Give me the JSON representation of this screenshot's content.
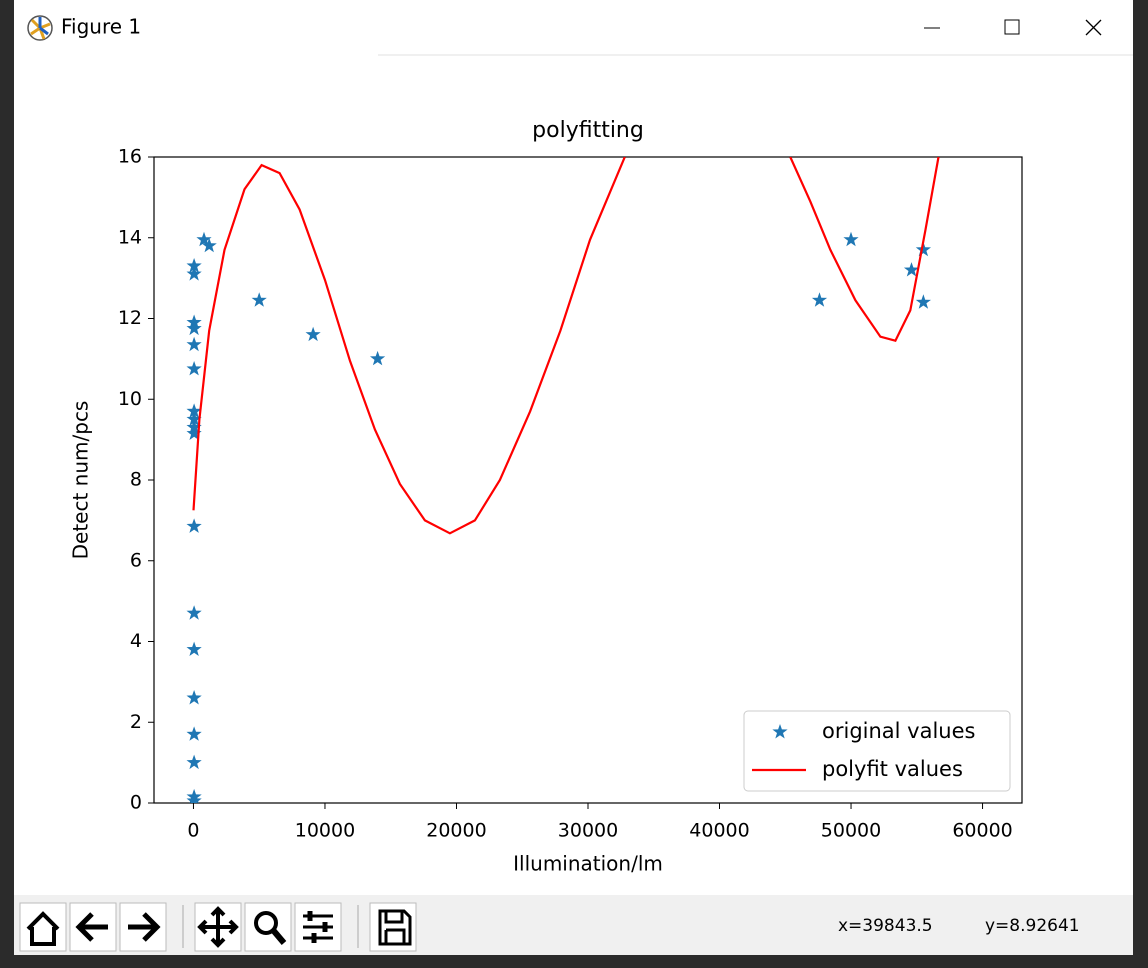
{
  "window": {
    "title": "Figure 1"
  },
  "chart_data": {
    "type": "line",
    "title": "polyfitting",
    "x_label": "Illumination/lm",
    "y_label": "Detect num/pcs",
    "xlim": [
      -3000,
      63000
    ],
    "ylim": [
      0,
      16
    ],
    "xticks": [
      0,
      10000,
      20000,
      30000,
      40000,
      50000,
      60000
    ],
    "yticks": [
      0,
      2,
      4,
      6,
      8,
      10,
      12,
      14,
      16
    ],
    "legend": "lower right",
    "series": [
      {
        "name": "original values",
        "color": "#1f77b4",
        "marker": "star",
        "linestyle": "none",
        "x": [
          50,
          50,
          50,
          50,
          50,
          50,
          50,
          50,
          50,
          50,
          50,
          50,
          50,
          50,
          50,
          50,
          50,
          50,
          800,
          1200,
          5000,
          9100,
          14000,
          47600,
          50000,
          54600,
          55500,
          55500
        ],
        "values": [
          13.3,
          13.1,
          11.9,
          11.75,
          11.35,
          10.75,
          9.7,
          9.5,
          9.3,
          9.15,
          6.85,
          4.7,
          3.8,
          2.6,
          1.7,
          1.0,
          0.15,
          0.05,
          13.95,
          13.8,
          12.45,
          11.6,
          11.0,
          12.45,
          13.95,
          13.2,
          13.7,
          12.4
        ]
      },
      {
        "name": "polyfit values",
        "color": "#ff0000",
        "marker": "none",
        "linestyle": "solid",
        "x": [
          0,
          450,
          1200,
          2360,
          3880,
          5180,
          6550,
          8070,
          10000,
          11900,
          13800,
          15700,
          17600,
          19500,
          21400,
          23300,
          25600,
          27900,
          30150,
          32800,
          null,
          45380,
          46900,
          48430,
          50330,
          52230,
          53370,
          54510,
          55660,
          56650
        ],
        "values": [
          7.25,
          9.5,
          11.7,
          13.7,
          15.2,
          15.8,
          15.6,
          14.7,
          12.95,
          10.95,
          9.25,
          7.9,
          7.0,
          6.68,
          7.0,
          8.0,
          9.7,
          11.7,
          13.95,
          16,
          null,
          16,
          14.9,
          13.7,
          12.45,
          11.55,
          11.45,
          12.2,
          14.2,
          16
        ]
      }
    ]
  },
  "status": {
    "x": "x=39843.5",
    "y": "y=8.92641"
  }
}
